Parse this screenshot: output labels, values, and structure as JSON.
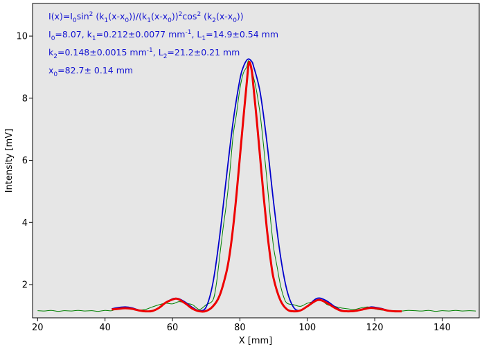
{
  "chart_data": {
    "type": "line",
    "xlabel": "X [mm]",
    "ylabel": "Intensity [mV]",
    "xlim": [
      18.5,
      151
    ],
    "ylim": [
      0.93,
      11.05
    ],
    "x_ticks": [
      20,
      40,
      60,
      80,
      100,
      120,
      140
    ],
    "y_ticks": [
      2,
      4,
      6,
      8,
      10
    ],
    "grid": false,
    "background": "#e6e6e6",
    "fit_annotation": {
      "color": "#1414d2",
      "formula": {
        "I": "I",
        "x": "(x)=I",
        "sub0": "0",
        "sin": "sin",
        "sup2": "2",
        "part1": " (k",
        "sub1": "1",
        "part2": "(x-x",
        "sub0b": "0",
        "part3": "))/(k",
        "sub1b": "1",
        "part4": "(x-x",
        "sub0c": "0",
        "part5": "))",
        "sup2b": "2",
        "cos": "cos",
        "sup2c": "2",
        "part6": " (k",
        "sub2": "2",
        "part7": "(x-x",
        "sub0d": "0",
        "part8": "))"
      },
      "line2": {
        "a": "I",
        "a_sub": "0",
        "a_val": "=8.07,  k",
        "k_sub": "1",
        "k_val": "=0.212±0.0077 mm",
        "k_sup": "-1",
        "sep": ",   L",
        "l_sub": "1",
        "l_val": "=14.9±0.54 mm"
      },
      "line3": {
        "a": "k",
        "a_sub": "2",
        "a_val": "=0.148±0.0015 mm",
        "a_sup": "-1",
        "sep": ",   L",
        "l_sub": "2",
        "l_val": "=21.2±0.21 mm"
      },
      "line4": {
        "a": "x",
        "a_sub": "0",
        "a_val": "=82.7±   0.14 mm"
      }
    },
    "series": [
      {
        "style": "dotted",
        "color": "#008000",
        "x": [
          20,
          22,
          24,
          26,
          28,
          30,
          32,
          34,
          36,
          38,
          40,
          42,
          44,
          46,
          48,
          50,
          52,
          54,
          56,
          58,
          60,
          62,
          64,
          66,
          68,
          70,
          72,
          73,
          74,
          75,
          76,
          77,
          78,
          79,
          80,
          81,
          82,
          82.7,
          84,
          85,
          86,
          87,
          88,
          89,
          90,
          91,
          92,
          93,
          94,
          96,
          98,
          100,
          102,
          104,
          106,
          108,
          110,
          112,
          114,
          116,
          118,
          120,
          122,
          124,
          126,
          128,
          130,
          132,
          134,
          136,
          138,
          140,
          142,
          144,
          146,
          148,
          150
        ],
        "y": [
          1.16,
          1.15,
          1.17,
          1.14,
          1.16,
          1.15,
          1.17,
          1.15,
          1.16,
          1.14,
          1.17,
          1.16,
          1.25,
          1.27,
          1.22,
          1.18,
          1.2,
          1.28,
          1.35,
          1.4,
          1.38,
          1.45,
          1.4,
          1.35,
          1.2,
          1.35,
          1.5,
          2.0,
          2.9,
          3.8,
          4.6,
          5.6,
          6.8,
          7.5,
          8.3,
          8.8,
          9.0,
          9.2,
          8.7,
          8.2,
          7.5,
          6.5,
          5.4,
          4.2,
          3.2,
          2.6,
          2.0,
          1.6,
          1.4,
          1.35,
          1.3,
          1.4,
          1.45,
          1.5,
          1.35,
          1.3,
          1.25,
          1.22,
          1.2,
          1.25,
          1.28,
          1.22,
          1.18,
          1.17,
          1.16,
          1.15,
          1.17,
          1.16,
          1.15,
          1.17,
          1.14,
          1.16,
          1.15,
          1.17,
          1.15,
          1.16,
          1.15
        ]
      },
      {
        "style": "solid",
        "color": "#0000cc",
        "x": [
          42,
          44,
          46,
          48,
          50,
          52,
          54,
          56,
          58,
          60,
          61,
          62,
          64,
          66,
          68,
          70,
          72,
          74,
          76,
          78,
          80,
          81,
          82,
          82.7,
          83.5,
          84,
          86,
          88,
          90,
          92,
          94,
          96,
          98,
          100,
          102,
          103,
          104,
          106,
          108,
          110,
          112,
          114,
          116,
          118,
          119,
          120,
          122,
          124,
          126,
          128
        ],
        "y": [
          1.22,
          1.26,
          1.28,
          1.25,
          1.18,
          1.14,
          1.15,
          1.25,
          1.42,
          1.54,
          1.56,
          1.54,
          1.42,
          1.26,
          1.16,
          1.28,
          2.05,
          3.55,
          5.45,
          7.25,
          8.6,
          9.0,
          9.22,
          9.26,
          9.18,
          9.05,
          8.2,
          6.6,
          4.65,
          2.95,
          1.8,
          1.26,
          1.17,
          1.3,
          1.5,
          1.56,
          1.56,
          1.46,
          1.3,
          1.18,
          1.14,
          1.15,
          1.2,
          1.26,
          1.28,
          1.27,
          1.23,
          1.17,
          1.14,
          1.14
        ]
      },
      {
        "style": "solid-thick",
        "color": "#ee0000",
        "x": [
          42,
          44,
          46,
          48,
          50,
          52,
          54,
          56,
          58,
          60,
          61,
          62,
          64,
          66,
          68,
          70,
          72,
          74,
          76,
          77,
          78,
          79,
          80,
          81,
          82,
          82.7,
          83.5,
          84,
          85,
          86,
          87,
          88,
          89,
          90,
          92,
          94,
          96,
          98,
          100,
          102,
          103,
          104,
          106,
          108,
          110,
          112,
          114,
          116,
          118,
          119,
          120,
          122,
          124,
          126,
          128
        ],
        "y": [
          1.2,
          1.22,
          1.24,
          1.22,
          1.17,
          1.14,
          1.15,
          1.25,
          1.42,
          1.52,
          1.55,
          1.52,
          1.38,
          1.22,
          1.14,
          1.15,
          1.3,
          1.65,
          2.4,
          3.0,
          3.85,
          4.9,
          6.1,
          7.3,
          8.45,
          9.15,
          8.9,
          8.4,
          7.3,
          6.1,
          4.9,
          3.8,
          2.9,
          2.2,
          1.5,
          1.2,
          1.14,
          1.17,
          1.3,
          1.45,
          1.5,
          1.5,
          1.4,
          1.26,
          1.16,
          1.14,
          1.15,
          1.19,
          1.24,
          1.25,
          1.24,
          1.21,
          1.16,
          1.14,
          1.14
        ]
      }
    ]
  }
}
